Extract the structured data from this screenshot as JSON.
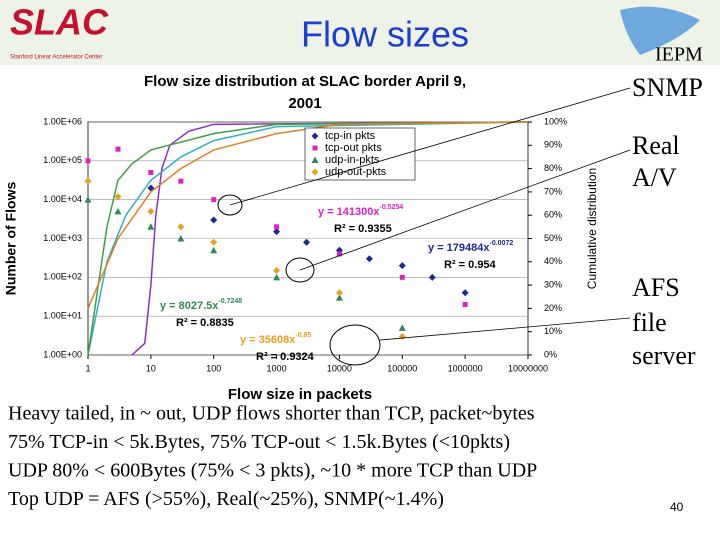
{
  "slide": {
    "title": "Flow sizes",
    "logo_left": "SLAC",
    "logo_left_caption": "Stanford Linear Accelerator Center",
    "logo_right": "IEPM",
    "side_notes": [
      "SNMP",
      "Real",
      "A/V",
      "AFS",
      "file",
      "server"
    ],
    "bullets": [
      "Heavy tailed, in ~ out, UDP flows shorter than TCP, packet~bytes",
      "75% TCP-in < 5k.Bytes, 75% TCP-out < 1.5k.Bytes (<10pkts)",
      "UDP 80% < 600Bytes (75% < 3 pkts), ~10 * more TCP than UDP",
      "Top UDP = AFS (>55%), Real(~25%), SNMP(~1.4%)"
    ],
    "page_number": "40"
  },
  "chart_data": {
    "type": "scatter",
    "title": "Flow size distribution at SLAC border April 9, 2001",
    "x_label": "Flow size in packets",
    "y_label": "Number of Flows",
    "y2_label": "Cumulative distribution",
    "xscale": "log",
    "yscale": "log",
    "xlim": [
      1,
      10000000
    ],
    "xticks": [
      1,
      10,
      100,
      1000,
      10000,
      100000,
      1000000,
      10000000
    ],
    "ylim": [
      1,
      1000000
    ],
    "yticks": [
      {
        "value": 1,
        "label": "1.00E+00"
      },
      {
        "value": 10,
        "label": "1.00E+01"
      },
      {
        "value": 100,
        "label": "1.00E+02"
      },
      {
        "value": 1000,
        "label": "1.00E+03"
      },
      {
        "value": 10000,
        "label": "1.00E+04"
      },
      {
        "value": 100000,
        "label": "1.00E+05"
      },
      {
        "value": 1000000,
        "label": "1.00E+06"
      }
    ],
    "y2lim": [
      0,
      100
    ],
    "y2ticks": [
      {
        "value": 0,
        "label": "0%"
      },
      {
        "value": 10,
        "label": "10%"
      },
      {
        "value": 20,
        "label": "20%"
      },
      {
        "value": 30,
        "label": "30%"
      },
      {
        "value": 40,
        "label": "40%"
      },
      {
        "value": 50,
        "label": "50%"
      },
      {
        "value": 60,
        "label": "60%"
      },
      {
        "value": 70,
        "label": "70%"
      },
      {
        "value": 80,
        "label": "80%"
      },
      {
        "value": 90,
        "label": "90%"
      },
      {
        "value": 100,
        "label": "100%"
      }
    ],
    "grid": true,
    "legend": "upper right",
    "series": [
      {
        "name": "tcp-in pkts",
        "color": "#1f2a8f",
        "marker": "diamond",
        "x": [
          10,
          100,
          1000,
          3000,
          10000,
          30000,
          100000,
          300000,
          1000000
        ],
        "values": [
          20000,
          3000,
          1500,
          800,
          500,
          300,
          200,
          100,
          40
        ]
      },
      {
        "name": "tcp-out pkts",
        "color": "#e020c0",
        "marker": "square",
        "x": [
          1,
          3,
          10,
          30,
          100,
          1000,
          10000,
          100000,
          1000000
        ],
        "values": [
          100000,
          200000,
          50000,
          30000,
          10000,
          2000,
          400,
          100,
          20
        ]
      },
      {
        "name": "udp-in-pkts",
        "color": "#2e8b57",
        "marker": "triangle",
        "x": [
          1,
          3,
          10,
          30,
          100,
          1000,
          10000,
          100000
        ],
        "values": [
          10000,
          5000,
          2000,
          1000,
          500,
          100,
          30,
          5
        ]
      },
      {
        "name": "udp-out-pkts",
        "color": "#e8a020",
        "marker": "diamond",
        "x": [
          1,
          3,
          10,
          30,
          100,
          1000,
          10000,
          100000
        ],
        "values": [
          30000,
          12000,
          5000,
          2000,
          800,
          150,
          40,
          3
        ]
      },
      {
        "color": "#9030c0",
        "axis": "y2",
        "line": true,
        "x": [
          5,
          8,
          10,
          12,
          15,
          20,
          40,
          100,
          10000000
        ],
        "values": [
          0,
          5,
          30,
          60,
          80,
          90,
          96,
          99,
          100
        ]
      },
      {
        "color": "#30b0c0",
        "axis": "y2",
        "line": true,
        "x": [
          1,
          2,
          4,
          10,
          30,
          100,
          1000,
          10000000
        ],
        "values": [
          0,
          40,
          60,
          75,
          85,
          92,
          98,
          100
        ]
      },
      {
        "color": "#40a040",
        "axis": "y2",
        "line": true,
        "x": [
          1,
          2,
          3,
          5,
          10,
          100,
          1000,
          10000000
        ],
        "values": [
          0,
          55,
          75,
          82,
          88,
          95,
          99,
          100
        ]
      },
      {
        "color": "#e08020",
        "axis": "y2",
        "line": true,
        "x": [
          1,
          3,
          10,
          30,
          100,
          1000,
          10000,
          10000000
        ],
        "values": [
          20,
          50,
          70,
          80,
          88,
          95,
          99,
          100
        ]
      }
    ],
    "annotations": [
      {
        "text": "y = 141300x",
        "exponent": "-0.5254",
        "r2": "R² = 0.9355"
      },
      {
        "text": "y = 179484x",
        "exponent": "-0.0072",
        "r2": "R² = 0.954"
      },
      {
        "text": "y = 8027.5x",
        "exponent": "-0.7248",
        "r2": "R² = 0.8835"
      },
      {
        "text": "y = 35608x",
        "exponent": "-0.85",
        "r2": "R² = 0.9324"
      }
    ]
  }
}
